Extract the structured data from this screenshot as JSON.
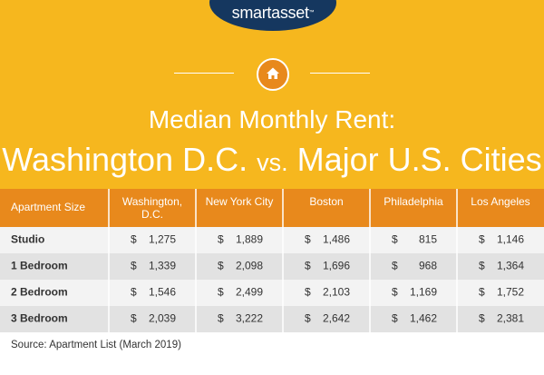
{
  "brand": {
    "logo_text": "smartasset",
    "tm": "™"
  },
  "icons": {
    "header": "home-icon"
  },
  "colors": {
    "banner": "#f6b71e",
    "header_row": "#e8891c",
    "row_light": "#f3f3f3",
    "row_dark": "#e2e2e2",
    "logo_bg": "#15375f"
  },
  "header": {
    "title_line1": "Median Monthly Rent:",
    "title_line2_a": "Washington D.C.",
    "title_line2_vs": "vs.",
    "title_line2_b": "Major U.S. Cities"
  },
  "chart_data": {
    "type": "table",
    "columns": [
      "Apartment Size",
      "Washington, D.C.",
      "New York City",
      "Boston",
      "Philadelphia",
      "Los Angeles"
    ],
    "rows": [
      [
        "Studio",
        1275,
        1889,
        1486,
        815,
        1146
      ],
      [
        "1 Bedroom",
        1339,
        2098,
        1696,
        968,
        1364
      ],
      [
        "2 Bedroom",
        1546,
        2499,
        2103,
        1169,
        1752
      ],
      [
        "3 Bedroom",
        2039,
        3222,
        2642,
        1462,
        2381
      ]
    ],
    "currency_symbol": "$"
  },
  "footer": {
    "source": "Source: Apartment List (March 2019)"
  }
}
